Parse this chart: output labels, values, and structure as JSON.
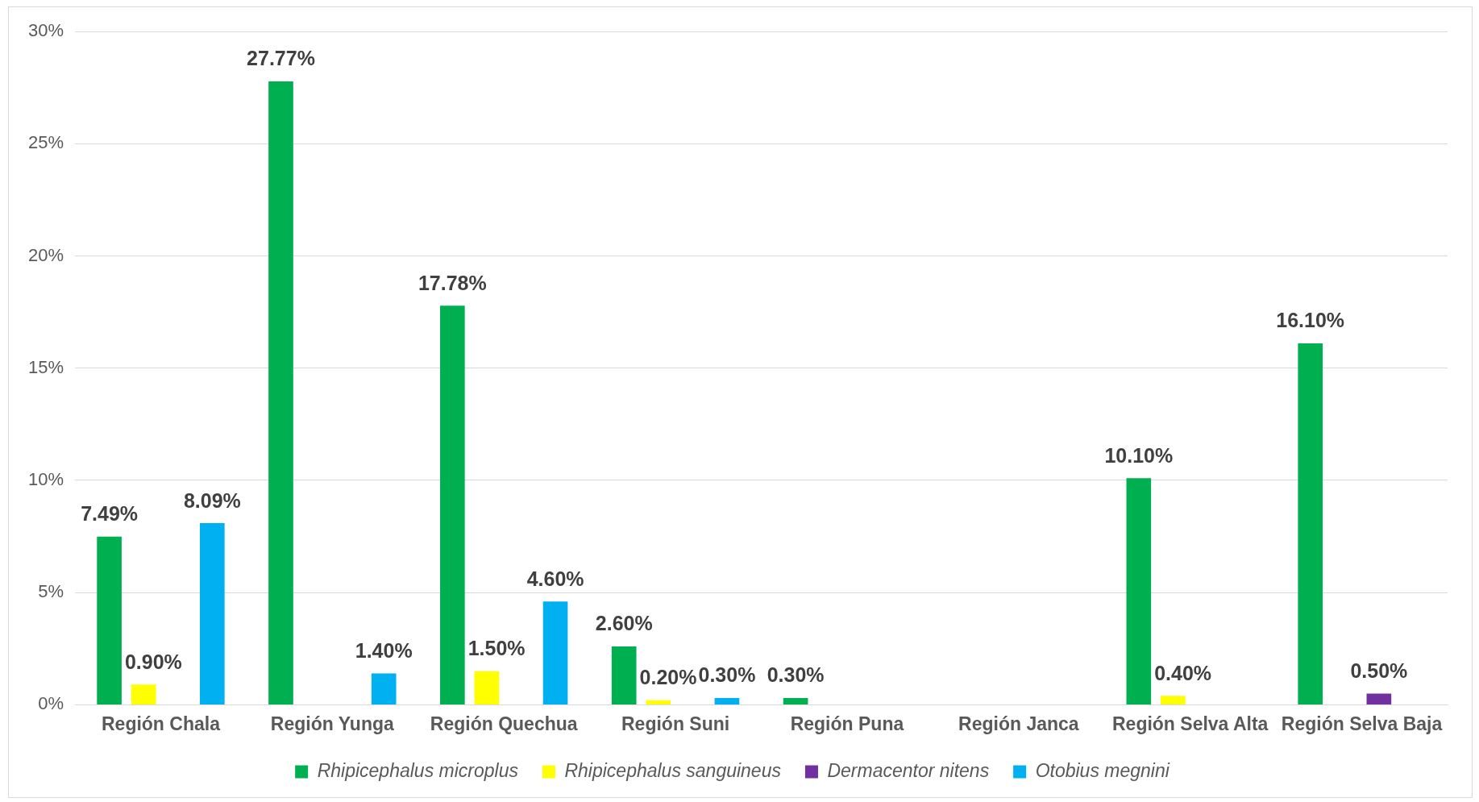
{
  "chart_data": {
    "type": "bar",
    "categories": [
      "Región Chala",
      "Región Yunga",
      "Región Quechua",
      "Región Suni",
      "Región Puna",
      "Región Janca",
      "Región Selva Alta",
      "Región Selva Baja"
    ],
    "series": [
      {
        "name": "Rhipicephalus microplus",
        "color": "#00b050",
        "values": [
          7.49,
          27.77,
          17.78,
          2.6,
          0.3,
          null,
          10.1,
          16.1
        ],
        "value_labels": [
          "7.49%",
          "27.77%",
          "17.78%",
          "2.60%",
          "0.30%",
          null,
          "10.10%",
          "16.10%"
        ]
      },
      {
        "name": "Rhipicephalus sanguineus",
        "color": "#ffff00",
        "values": [
          0.9,
          null,
          1.5,
          0.2,
          null,
          null,
          0.4,
          null
        ],
        "value_labels": [
          "0.90%",
          null,
          "1.50%",
          "0.20%",
          null,
          null,
          "0.40%",
          null
        ]
      },
      {
        "name": "Dermacentor nitens",
        "color": "#7030a0",
        "values": [
          null,
          null,
          null,
          null,
          null,
          null,
          null,
          0.5
        ],
        "value_labels": [
          null,
          null,
          null,
          null,
          null,
          null,
          null,
          "0.50%"
        ]
      },
      {
        "name": "Otobius megnini",
        "color": "#00b0f0",
        "values": [
          8.09,
          1.4,
          4.6,
          0.3,
          null,
          null,
          null,
          null
        ],
        "value_labels": [
          "8.09%",
          "1.40%",
          "4.60%",
          "0.30%",
          null,
          null,
          null,
          null
        ]
      }
    ],
    "ylim": [
      0,
      30
    ],
    "yticks": [
      {
        "value": 0,
        "label": "0%"
      },
      {
        "value": 5,
        "label": "5%"
      },
      {
        "value": 10,
        "label": "10%"
      },
      {
        "value": 15,
        "label": "15%"
      },
      {
        "value": 20,
        "label": "20%"
      },
      {
        "value": 25,
        "label": "25%"
      },
      {
        "value": 30,
        "label": "30%"
      }
    ],
    "grid": "y",
    "legend": "bottom"
  }
}
